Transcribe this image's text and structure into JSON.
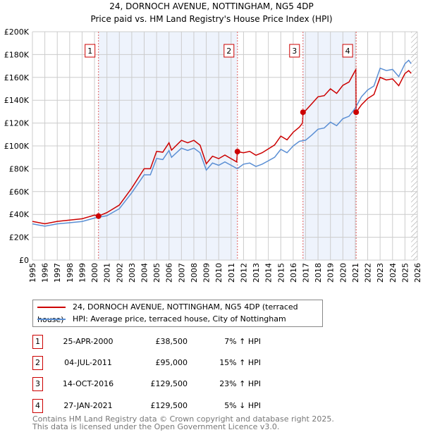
{
  "chart_data": {
    "type": "line",
    "title": "24, DORNOCH AVENUE, NOTTINGHAM, NG5 4DP",
    "subtitle": "Price paid vs. HM Land Registry's House Price Index (HPI)",
    "xlim": [
      1995,
      2026
    ],
    "ylim": [
      0,
      200000
    ],
    "yticks": [
      0,
      20000,
      40000,
      60000,
      80000,
      100000,
      120000,
      140000,
      160000,
      180000,
      200000
    ],
    "ytick_labels": [
      "£0",
      "£20K",
      "£40K",
      "£60K",
      "£80K",
      "£100K",
      "£120K",
      "£140K",
      "£160K",
      "£180K",
      "£200K"
    ],
    "xticks": [
      1995,
      1996,
      1997,
      1998,
      1999,
      2000,
      2001,
      2002,
      2003,
      2004,
      2005,
      2006,
      2007,
      2008,
      2009,
      2010,
      2011,
      2012,
      2013,
      2014,
      2015,
      2016,
      2017,
      2018,
      2019,
      2020,
      2021,
      2022,
      2023,
      2024,
      2025,
      2026
    ],
    "grid": true,
    "forecast_hatch_from": 2025.5,
    "shaded_periods": [
      [
        2000.32,
        2011.51
      ],
      [
        2016.79,
        2021.07
      ]
    ],
    "series": [
      {
        "name": "24, DORNOCH AVENUE, NOTTINGHAM, NG5 4DP (terraced house)",
        "color": "#cc0000",
        "x": [
          1995,
          1996,
          1997,
          1998,
          1999,
          2000,
          2000.32,
          2001,
          2002,
          2003,
          2004,
          2004.5,
          2005,
          2005.5,
          2006,
          2006.2,
          2007,
          2007.5,
          2008,
          2008.5,
          2009,
          2009.5,
          2010,
          2010.5,
          2011,
          2011.45,
          2011.51,
          2012,
          2012.5,
          2013,
          2013.5,
          2014,
          2014.5,
          2015,
          2015.5,
          2016,
          2016.5,
          2016.75,
          2016.79,
          2017,
          2017.5,
          2018,
          2018.5,
          2019,
          2019.5,
          2020,
          2020.5,
          2021,
          2021.05,
          2021.07,
          2021.5,
          2022,
          2022.5,
          2023,
          2023.5,
          2024,
          2024.5,
          2025,
          2025.3,
          2025.5
        ],
        "values": [
          33900,
          31800,
          33900,
          35000,
          36200,
          39400,
          38500,
          41600,
          48200,
          63100,
          80000,
          80000,
          95200,
          94500,
          102700,
          96300,
          104900,
          102700,
          104900,
          100600,
          84300,
          91000,
          88800,
          92000,
          88800,
          86000,
          95000,
          94000,
          95200,
          91800,
          94000,
          97400,
          100800,
          108600,
          105300,
          112000,
          116500,
          120000,
          129500,
          131000,
          137000,
          143000,
          144000,
          150000,
          146000,
          153000,
          156000,
          166000,
          167000,
          129500,
          136000,
          141500,
          145000,
          160000,
          157700,
          158700,
          152700,
          163400,
          166000,
          163500
        ]
      },
      {
        "name": "HPI: Average price, terraced house, City of Nottingham",
        "color": "#5b8fd4",
        "x": [
          1995,
          1996,
          1997,
          1998,
          1999,
          2000,
          2001,
          2002,
          2003,
          2004,
          2004.5,
          2005,
          2005.5,
          2006,
          2006.2,
          2007,
          2007.5,
          2008,
          2008.5,
          2009,
          2009.5,
          2010,
          2010.5,
          2011,
          2011.5,
          2012,
          2012.5,
          2013,
          2013.5,
          2014,
          2014.5,
          2015,
          2015.5,
          2016,
          2016.5,
          2017,
          2017.5,
          2018,
          2018.5,
          2019,
          2019.5,
          2020,
          2020.5,
          2021,
          2021.5,
          2022,
          2022.5,
          2023,
          2023.5,
          2024,
          2024.5,
          2025,
          2025.3,
          2025.5
        ],
        "values": [
          31700,
          29700,
          31700,
          32700,
          33800,
          36800,
          38900,
          45000,
          59000,
          74700,
          74700,
          89000,
          88000,
          96000,
          90000,
          98000,
          96000,
          98000,
          94000,
          78800,
          85000,
          83000,
          86000,
          83000,
          80000,
          84000,
          85000,
          82000,
          84000,
          87000,
          90000,
          97000,
          94000,
          100000,
          104000,
          105000,
          109500,
          114600,
          115700,
          120800,
          117700,
          123800,
          126000,
          133000,
          143000,
          149000,
          152500,
          168000,
          166000,
          167000,
          160700,
          172000,
          175000,
          172000
        ]
      }
    ],
    "sales": [
      {
        "id": "1",
        "x": 2000.32,
        "value": 38500
      },
      {
        "id": "2",
        "x": 2011.51,
        "value": 95000
      },
      {
        "id": "3",
        "x": 2016.79,
        "value": 129500
      },
      {
        "id": "4",
        "x": 2021.07,
        "value": 129500
      }
    ]
  },
  "legend": {
    "property": "24, DORNOCH AVENUE, NOTTINGHAM, NG5 4DP (terraced house)",
    "hpi": "HPI: Average price, terraced house, City of Nottingham"
  },
  "transactions": [
    {
      "num": "1",
      "date": "25-APR-2000",
      "price": "£38,500",
      "pct": "7% ↑ HPI"
    },
    {
      "num": "2",
      "date": "04-JUL-2011",
      "price": "£95,000",
      "pct": "15% ↑ HPI"
    },
    {
      "num": "3",
      "date": "14-OCT-2016",
      "price": "£129,500",
      "pct": "23% ↑ HPI"
    },
    {
      "num": "4",
      "date": "27-JAN-2021",
      "price": "£129,500",
      "pct": "5% ↓ HPI"
    }
  ],
  "footer": {
    "line1": "Contains HM Land Registry data © Crown copyright and database right 2025.",
    "line2": "This data is licensed under the Open Government Licence v3.0."
  }
}
